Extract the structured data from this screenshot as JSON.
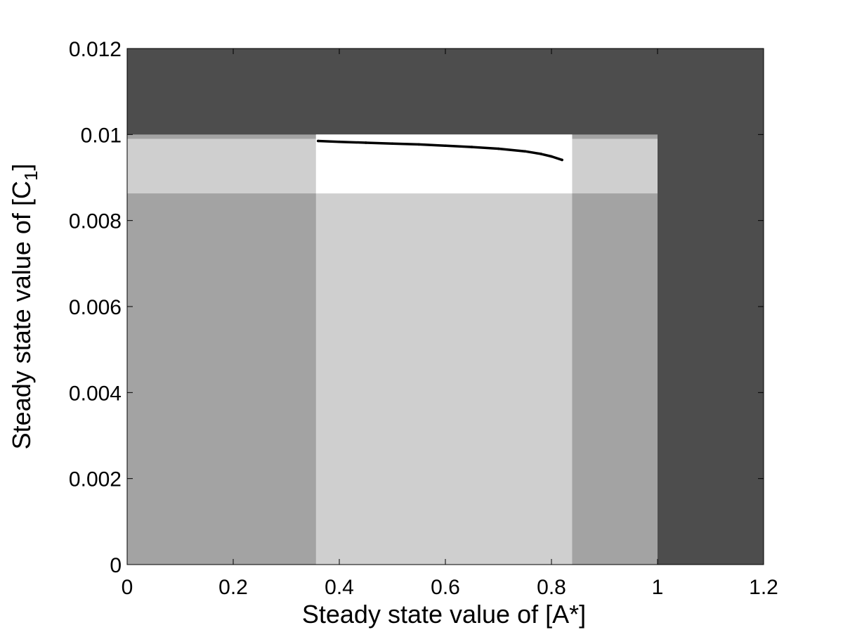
{
  "chart_data": {
    "type": "scatter",
    "title": "",
    "xlabel": "Steady state value of [A*]",
    "ylabel_main": "Steady state value of [C",
    "ylabel_sub": "1",
    "ylabel_close": "]",
    "xlim": [
      0,
      1.2
    ],
    "ylim": [
      0,
      0.012
    ],
    "x_ticks": [
      0,
      0.2,
      0.4,
      0.6,
      0.8,
      1,
      1.2
    ],
    "x_tick_labels": [
      "0",
      "0.2",
      "0.4",
      "0.6",
      "0.8",
      "1",
      "1.2"
    ],
    "y_ticks": [
      0,
      0.002,
      0.004,
      0.006,
      0.008,
      0.01,
      0.012
    ],
    "y_tick_labels": [
      "0",
      "0.002",
      "0.004",
      "0.006",
      "0.008",
      "0.01",
      "0.012"
    ],
    "grid": false,
    "legend": "none",
    "background_regions": [
      {
        "x": [
          0,
          1.2
        ],
        "y": [
          0,
          0.012
        ],
        "color": "#4d4d4d"
      },
      {
        "x": [
          0,
          1.0
        ],
        "y": [
          0,
          0.01
        ],
        "color": "#a3a3a3"
      },
      {
        "x": [
          0,
          1.0
        ],
        "y": [
          0.00863,
          0.0099
        ],
        "color": "#cfcfcf"
      },
      {
        "x": [
          0.356,
          0.839
        ],
        "y": [
          0,
          0.01
        ],
        "color": "#cfcfcf"
      },
      {
        "x": [
          0.356,
          0.839
        ],
        "y": [
          0.00863,
          0.01
        ],
        "color": "#ffffff"
      }
    ],
    "series": [
      {
        "color": "#000000",
        "x": [
          0.36,
          0.4,
          0.45,
          0.5,
          0.55,
          0.6,
          0.65,
          0.7,
          0.75,
          0.78,
          0.8,
          0.82
        ],
        "y": [
          0.00985,
          0.00983,
          0.00981,
          0.00979,
          0.00977,
          0.00974,
          0.00971,
          0.00967,
          0.00961,
          0.00955,
          0.00949,
          0.00941
        ]
      }
    ]
  }
}
